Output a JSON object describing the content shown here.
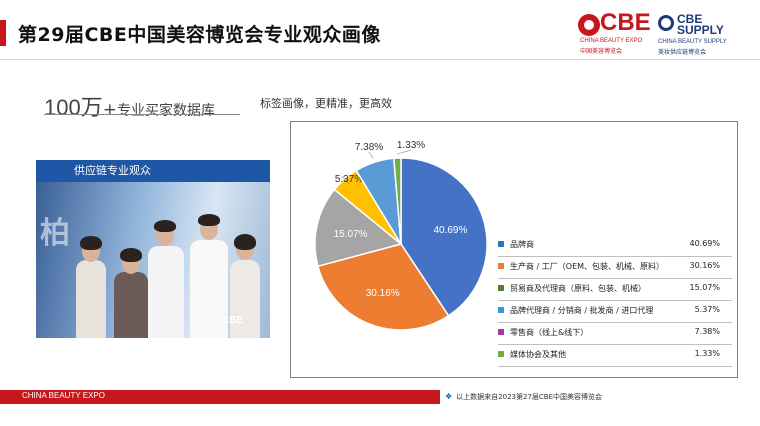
{
  "header": {
    "title": "第29届CBE中国美容博览会专业观众画像"
  },
  "logos": {
    "cbe": {
      "word": "CBE",
      "en": "CHINA BEAUTY EXPO",
      "cn": "中国美容博览会"
    },
    "supply": {
      "word1": "CBE",
      "word2": "SUPPLY",
      "en": "CHINA BEAUTY SUPPLY",
      "cn": "美妆供应链博览会"
    }
  },
  "headline": {
    "big": "100万",
    "plus": "+",
    "mid": "专业买家数据库",
    "tagline": "标签画像，更精准，更高效"
  },
  "photo": {
    "label": "供应链专业观众",
    "logo": "CBE"
  },
  "chart_data": {
    "type": "pie",
    "title": "",
    "slices": [
      {
        "name": "品牌商",
        "value": 40.69,
        "label": "40.69%",
        "color": "#4472c4"
      },
      {
        "name": "生产商 / 工厂（OEM、包装、机械、原料）",
        "value": 30.16,
        "label": "30.16%",
        "color": "#ed7d31"
      },
      {
        "name": "贸易商及代理商（原料、包装、机械）",
        "value": 15.07,
        "label": "15.07%",
        "color": "#a5a5a5"
      },
      {
        "name": "品牌代理商 / 分销商 / 批发商 / 进口代理",
        "value": 5.37,
        "label": "5.37%",
        "color": "#ffc000"
      },
      {
        "name": "零售商（线上&线下）",
        "value": 7.38,
        "label": "7.38%",
        "color": "#5b9bd5"
      },
      {
        "name": "媒体协会及其他",
        "value": 1.33,
        "label": "1.33%",
        "color": "#70ad47"
      }
    ],
    "legend": [
      {
        "name": "品牌商",
        "value": "40.69%",
        "color": "#2e75b6"
      },
      {
        "name": "生产商 / 工厂（OEM、包装、机械、原料）",
        "value": "30.16%",
        "color": "#ed7d31"
      },
      {
        "name": "贸易商及代理商（原料、包装、机械）",
        "value": "15.07%",
        "color": "#548235"
      },
      {
        "name": "品牌代理商 / 分销商 / 批发商 / 进口代理",
        "value": "5.37%",
        "color": "#2e9bd6"
      },
      {
        "name": "零售商（线上&线下）",
        "value": "7.38%",
        "color": "#9e3d9e"
      },
      {
        "name": "媒体协会及其他",
        "value": "1.33%",
        "color": "#70ad47"
      }
    ],
    "legend_position": "right"
  },
  "footer": {
    "brand": "CHINA BEAUTY EXPO",
    "note": "以上数据来自2023第27届CBE中国美容博览会"
  }
}
